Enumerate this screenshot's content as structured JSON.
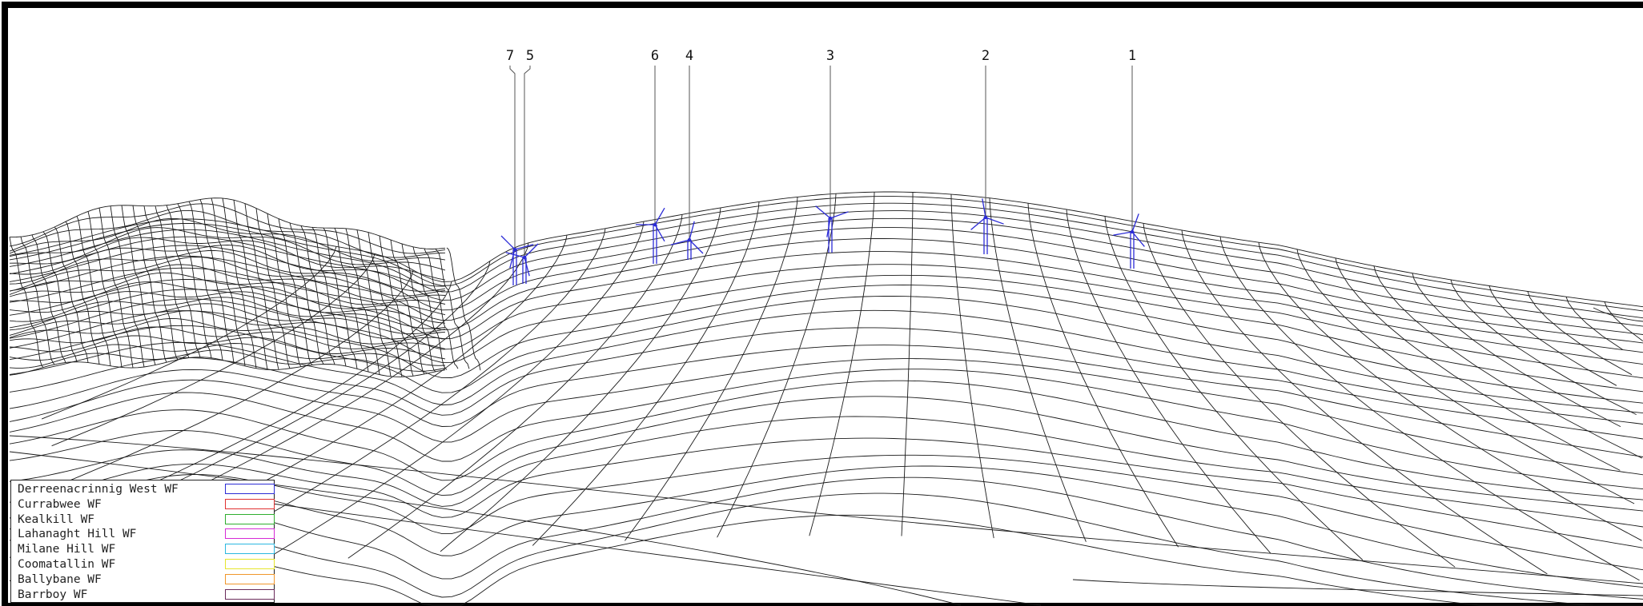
{
  "turbines": [
    {
      "label": "1",
      "color": "#2b2bd6"
    },
    {
      "label": "2",
      "color": "#2b2bd6"
    },
    {
      "label": "3",
      "color": "#2b2bd6"
    },
    {
      "label": "4",
      "color": "#2b2bd6"
    },
    {
      "label": "6",
      "color": "#2b2bd6"
    },
    {
      "label": "5",
      "color": "#2b2bd6"
    },
    {
      "label": "7",
      "color": "#2b2bd6"
    }
  ],
  "legend": [
    {
      "name": "Derreenacrinnig West WF",
      "color": "#2b2bd6"
    },
    {
      "name": "Currabwee WF",
      "color": "#e03030"
    },
    {
      "name": "Kealkill WF",
      "color": "#2fae2f"
    },
    {
      "name": "Lahanaght Hill WF",
      "color": "#d62bd6"
    },
    {
      "name": "Milane Hill WF",
      "color": "#2bb8e0"
    },
    {
      "name": "Coomatallin WF",
      "color": "#e6e62b"
    },
    {
      "name": "Ballybane WF",
      "color": "#f0962b"
    },
    {
      "name": "Barrboy WF",
      "color": "#6a2b5a"
    }
  ],
  "colors": {
    "wireframe": "#1a1a1a",
    "frame": "#000000"
  }
}
